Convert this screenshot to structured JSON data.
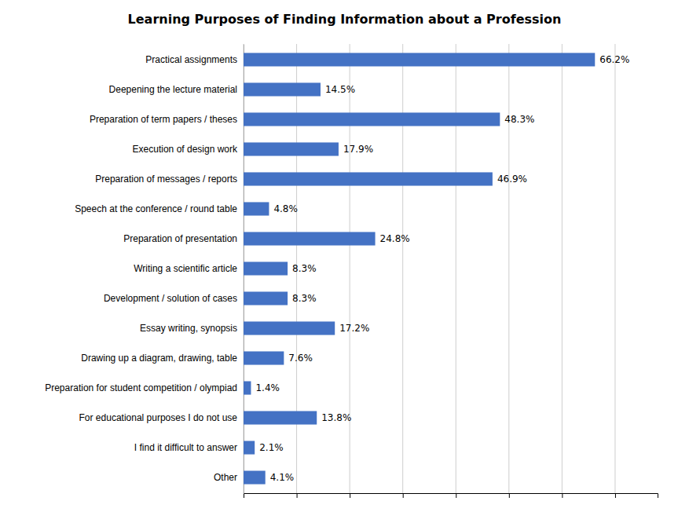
{
  "chart_data": {
    "type": "bar",
    "orientation": "horizontal",
    "title": "Learning Purposes of Finding Information about a Profession",
    "categories": [
      "Practical assignments",
      "Deepening the lecture material",
      "Preparation of term papers / theses",
      "Execution of design work",
      "Preparation of messages / reports",
      "Speech at the conference / round table",
      "Preparation of presentation",
      "Writing a scientific article",
      "Development / solution of cases",
      "Essay writing, synopsis",
      "Drawing up a diagram, drawing, table",
      "Preparation for student competition / olympiad",
      "For educational purposes I do not use",
      "I find it difficult to answer",
      "Other"
    ],
    "values": [
      66.2,
      14.5,
      48.3,
      17.9,
      46.9,
      4.8,
      24.8,
      8.3,
      8.3,
      17.2,
      7.6,
      1.4,
      13.8,
      2.1,
      4.1
    ],
    "value_labels": [
      "66.2%",
      "14.5%",
      "48.3%",
      "17.9%",
      "46.9%",
      "4.8%",
      "24.8%",
      "8.3%",
      "8.3%",
      "17.2%",
      "7.6%",
      "1.4%",
      "13.8%",
      "2.1%",
      "4.1%"
    ],
    "color": "#4472C4",
    "xlim": [
      0,
      78
    ],
    "xticks": [
      0,
      10,
      20,
      30,
      40,
      50,
      60,
      70
    ],
    "grid": true,
    "data_labels": true,
    "tick_labels": "y"
  }
}
